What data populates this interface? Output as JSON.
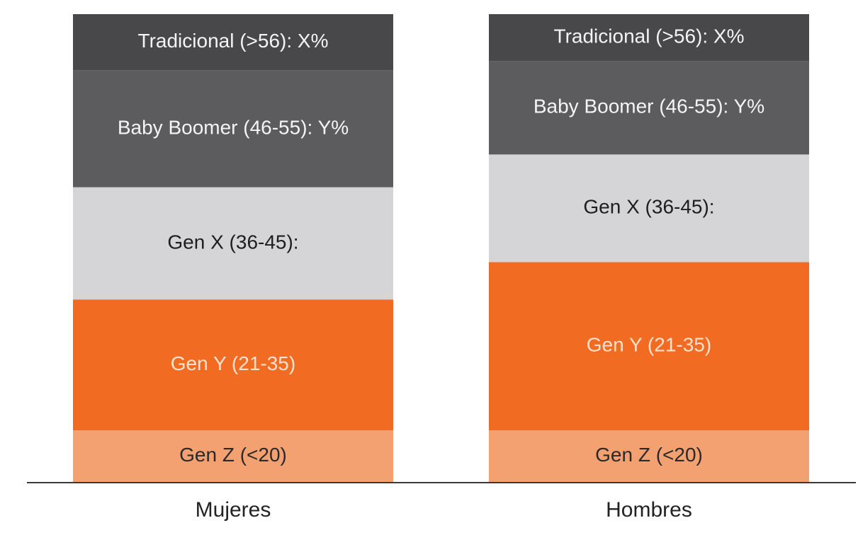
{
  "chart_data": {
    "type": "stacked_bar",
    "categories": [
      "Mujeres",
      "Hombres"
    ],
    "series": [
      {
        "name": "Gen Z (<20)",
        "color": "#f4a172",
        "label_color": "#2a2a2a",
        "values": [
          11,
          11
        ]
      },
      {
        "name": "Gen Y (21-35)",
        "color": "#f26b22",
        "label_color": "#fde3cf",
        "values": [
          28,
          36
        ]
      },
      {
        "name": "Gen X (36-45):",
        "color": "#d5d5d7",
        "label_color": "#1e1e1e",
        "values": [
          24,
          23
        ]
      },
      {
        "name": "Baby Boomer (46-55): Y%",
        "color": "#5c5c5e",
        "label_color": "#f4f4f4",
        "values": [
          25,
          20
        ]
      },
      {
        "name": "Tradicional (>56): X%",
        "color": "#48484a",
        "label_color": "#f4f4f4",
        "values": [
          12,
          10
        ]
      }
    ],
    "ylim": [
      0,
      100
    ]
  }
}
